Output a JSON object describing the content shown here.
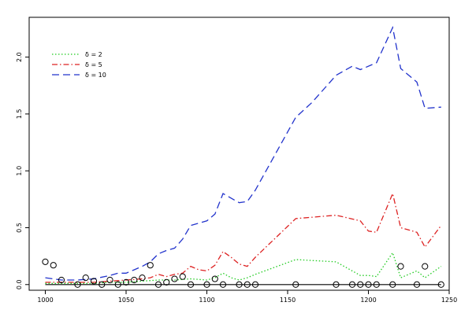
{
  "chart_data": {
    "type": "line",
    "title": "",
    "xlabel": "",
    "ylabel": "",
    "xlim": [
      990,
      1250
    ],
    "ylim": [
      -0.05,
      2.35
    ],
    "x_ticks": [
      1000,
      1050,
      1100,
      1150,
      1200,
      1250
    ],
    "y_ticks": [
      0.0,
      0.5,
      1.0,
      1.5,
      2.0
    ],
    "y_tick_labels": [
      "0.0",
      "0.5",
      "1.0",
      "1.5",
      "2.0"
    ],
    "legend_position": "top-left",
    "series": [
      {
        "name": "δ = 2",
        "color": "#22cc22",
        "style": "dotted",
        "x": [
          1000,
          1010,
          1020,
          1030,
          1040,
          1050,
          1060,
          1070,
          1080,
          1090,
          1100,
          1105,
          1110,
          1115,
          1120,
          1125,
          1130,
          1155,
          1180,
          1195,
          1200,
          1205,
          1215,
          1220,
          1230,
          1235,
          1245
        ],
        "y": [
          0.01,
          0.01,
          0.01,
          0.01,
          0.02,
          0.02,
          0.03,
          0.04,
          0.04,
          0.05,
          0.04,
          0.06,
          0.1,
          0.06,
          0.04,
          0.06,
          0.09,
          0.22,
          0.2,
          0.08,
          0.08,
          0.07,
          0.28,
          0.06,
          0.12,
          0.06,
          0.16
        ]
      },
      {
        "name": "δ = 5",
        "color": "#dd2222",
        "style": "dotdash",
        "x": [
          1000,
          1010,
          1020,
          1030,
          1040,
          1050,
          1060,
          1065,
          1070,
          1075,
          1080,
          1085,
          1090,
          1095,
          1100,
          1105,
          1110,
          1115,
          1120,
          1125,
          1130,
          1155,
          1180,
          1195,
          1200,
          1205,
          1215,
          1220,
          1230,
          1235,
          1245
        ],
        "y": [
          0.02,
          0.02,
          0.02,
          0.02,
          0.03,
          0.04,
          0.05,
          0.06,
          0.09,
          0.07,
          0.09,
          0.1,
          0.16,
          0.13,
          0.12,
          0.17,
          0.29,
          0.24,
          0.18,
          0.16,
          0.24,
          0.58,
          0.61,
          0.56,
          0.47,
          0.46,
          0.8,
          0.5,
          0.46,
          0.33,
          0.52
        ]
      },
      {
        "name": "δ = 10",
        "color": "#2233cc",
        "style": "dashed",
        "x": [
          1000,
          1010,
          1020,
          1030,
          1040,
          1045,
          1050,
          1055,
          1060,
          1065,
          1070,
          1075,
          1080,
          1085,
          1090,
          1100,
          1105,
          1110,
          1115,
          1120,
          1125,
          1130,
          1155,
          1165,
          1180,
          1190,
          1195,
          1205,
          1215,
          1220,
          1230,
          1235,
          1245
        ],
        "y": [
          0.06,
          0.04,
          0.04,
          0.05,
          0.08,
          0.1,
          0.1,
          0.13,
          0.16,
          0.2,
          0.27,
          0.3,
          0.32,
          0.4,
          0.52,
          0.56,
          0.62,
          0.8,
          0.76,
          0.72,
          0.73,
          0.83,
          1.47,
          1.6,
          1.84,
          1.92,
          1.89,
          1.95,
          2.26,
          1.9,
          1.78,
          1.55,
          1.56
        ]
      },
      {
        "name": "",
        "color": "#000000",
        "style": "solid",
        "x": [
          1000,
          1245
        ],
        "y": [
          0.0,
          0.0
        ]
      }
    ],
    "points": {
      "marker": "open-circle",
      "color": "#000000",
      "x": [
        1000,
        1005,
        1010,
        1020,
        1025,
        1030,
        1035,
        1040,
        1045,
        1050,
        1055,
        1060,
        1065,
        1070,
        1075,
        1080,
        1085,
        1090,
        1100,
        1105,
        1110,
        1120,
        1125,
        1130,
        1155,
        1180,
        1190,
        1195,
        1200,
        1205,
        1215,
        1220,
        1230,
        1235,
        1245
      ],
      "y": [
        0.2,
        0.17,
        0.04,
        0.0,
        0.06,
        0.03,
        0.0,
        0.04,
        0.0,
        0.02,
        0.04,
        0.06,
        0.17,
        0.0,
        0.02,
        0.05,
        0.07,
        0.0,
        0.0,
        0.05,
        0.0,
        0.0,
        0.0,
        0.0,
        0.0,
        0.0,
        0.0,
        0.0,
        0.0,
        0.0,
        0.0,
        0.16,
        0.0,
        0.16,
        0.0
      ]
    }
  }
}
